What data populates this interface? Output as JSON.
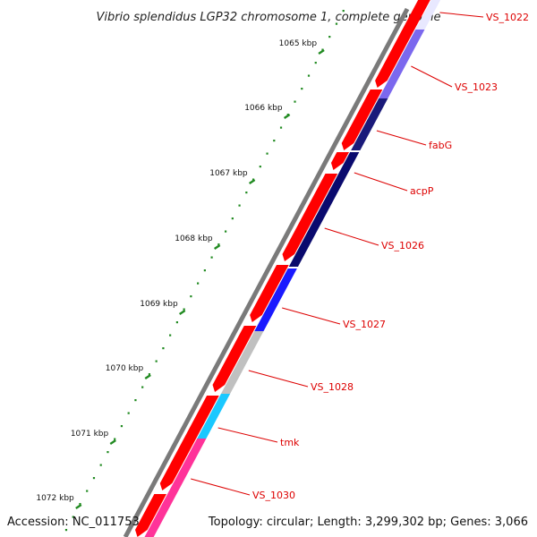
{
  "title": "Vibrio splendidus LGP32 chromosome 1, complete genome",
  "footer": {
    "accession": "Accession: NC_011753",
    "topology": "Topology: circular; Length: 3,299,302 bp; Genes: 3,066"
  },
  "ticks": [
    "1065 kbp",
    "1066 kbp",
    "1067 kbp",
    "1068 kbp",
    "1069 kbp",
    "1070 kbp",
    "1071 kbp",
    "1072 kbp"
  ],
  "genes": [
    {
      "label": "VS_1022",
      "color": "#e8e8ff"
    },
    {
      "label": "VS_1023",
      "color": "#7b68ee"
    },
    {
      "label": "fabG",
      "color": "#1a1a7a"
    },
    {
      "label": "acpP",
      "color": "#0a0a6e"
    },
    {
      "label": "VS_1026",
      "color": "#0a0a6e"
    },
    {
      "label": "VS_1027",
      "color": "#1a1aff"
    },
    {
      "label": "VS_1028",
      "color": "#c0c0c0"
    },
    {
      "label": "tmk",
      "color": "#1ac8ff"
    },
    {
      "label": "VS_1030",
      "color": "#ff3399"
    }
  ],
  "colors": {
    "backbone": "#808080",
    "forward_cds": "#ff0000",
    "tick": "#228B22",
    "label": "#dd0000",
    "leader": "#dd0000"
  }
}
